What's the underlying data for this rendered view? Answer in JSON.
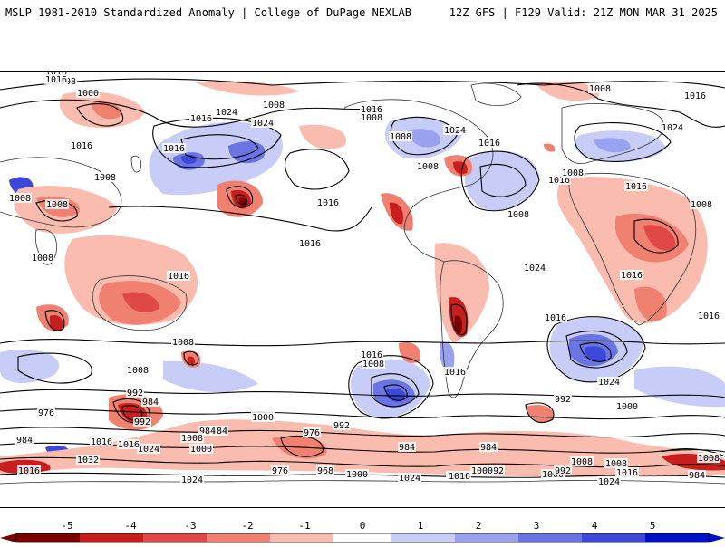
{
  "header": {
    "left_title": "MSLP 1981-2010 Standardized Anomaly | College of DuPage NEXLAB",
    "right_title": "12Z GFS | F129 Valid: 21Z MON MAR 31 2025"
  },
  "isobar_labels": [
    "1016",
    "1008",
    "1000",
    "1016",
    "1024",
    "1008",
    "1016",
    "1024",
    "1016",
    "1016",
    "1016",
    "1008",
    "1016",
    "1024",
    "1008",
    "1008",
    "1016",
    "1016",
    "1008",
    "1008",
    "1008",
    "1024",
    "1016",
    "1008",
    "1016",
    "1008",
    "1008",
    "1016",
    "1024",
    "1008",
    "1008",
    "1016",
    "1016",
    "1008",
    "1008",
    "1016",
    "1016",
    "1016",
    "1016",
    "1024",
    "1008",
    "992",
    "984",
    "1000",
    "992",
    "976",
    "984",
    "984",
    "1016",
    "1032",
    "984",
    "1024",
    "992",
    "1000",
    "976",
    "984",
    "992",
    "1008",
    "1000",
    "984",
    "1024",
    "1016",
    "1016",
    "1000",
    "968",
    "976",
    "992",
    "984",
    "1016",
    "1008",
    "1000",
    "992",
    "1000",
    "1008",
    "1024",
    "1008",
    "1016",
    "1024",
    "1016"
  ],
  "colorbar": {
    "ticks": [
      "-5",
      "-4",
      "-3",
      "-2",
      "-1",
      "0",
      "1",
      "2",
      "3",
      "4",
      "5"
    ],
    "colors": {
      "neg5": "#7a0000",
      "neg4": "#c81e1e",
      "neg3": "#e04848",
      "neg2": "#f08070",
      "neg1": "#fbbcb0",
      "zero": "#ffffff",
      "pos1": "#c8cdf8",
      "pos2": "#9aa2f0",
      "pos3": "#6a74e4",
      "pos4": "#3e48d8",
      "pos5": "#0010c8"
    }
  }
}
